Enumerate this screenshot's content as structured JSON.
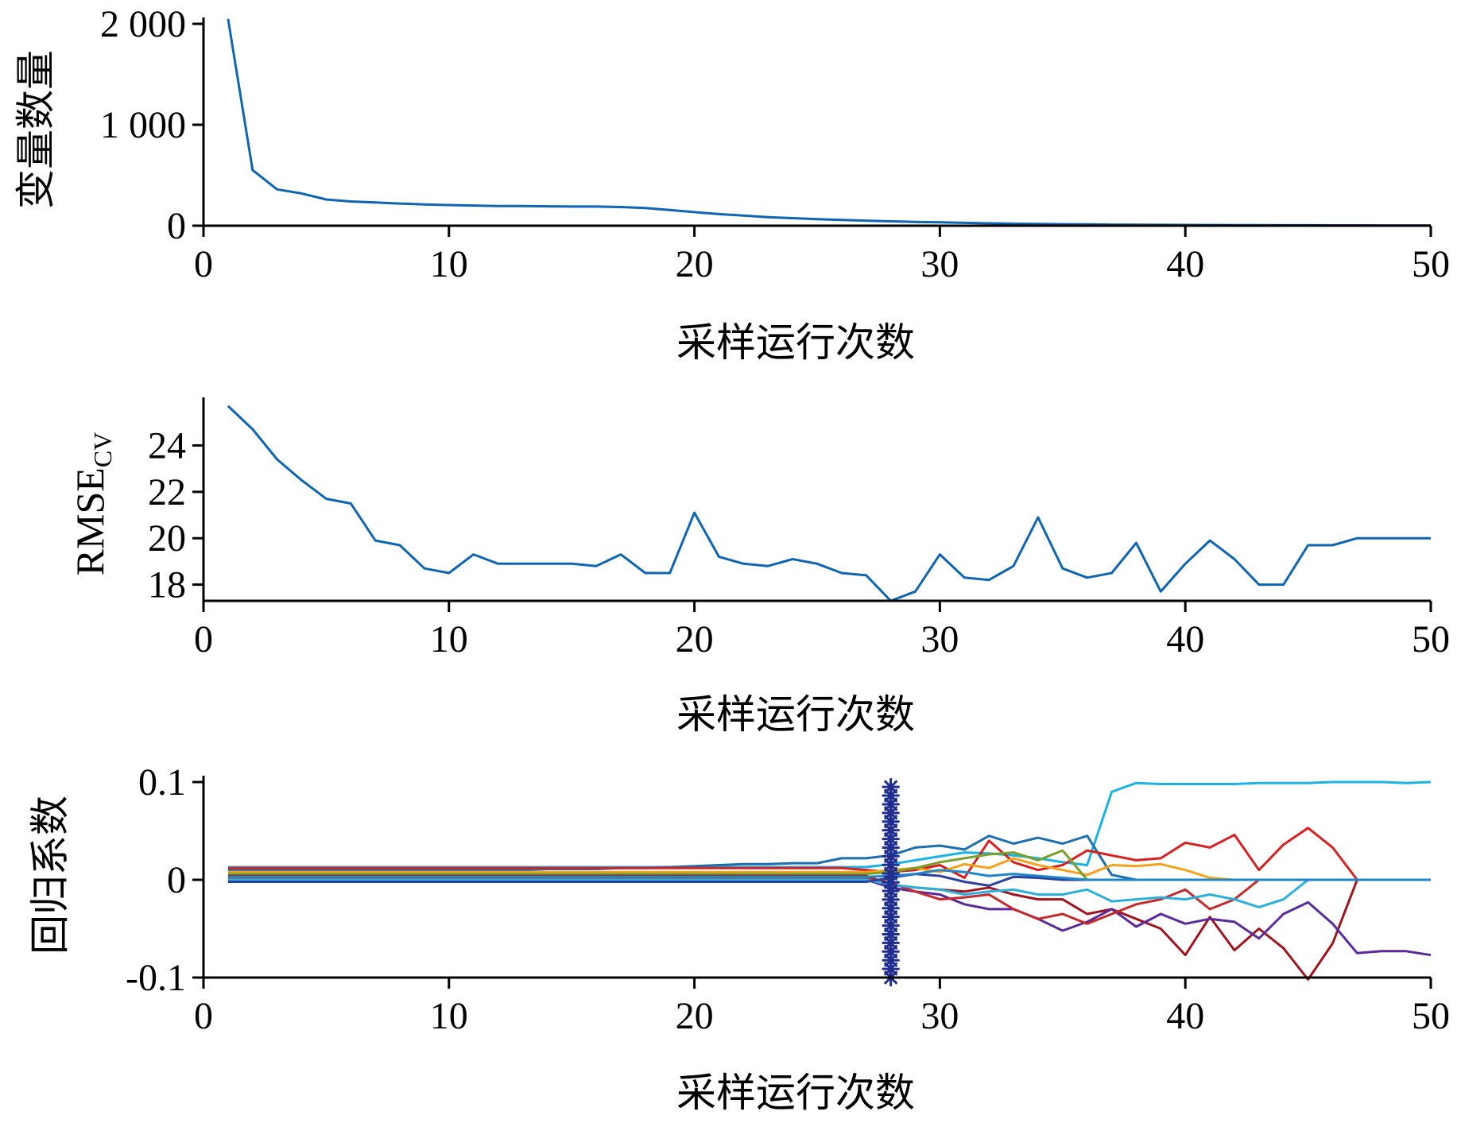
{
  "chart_data": [
    {
      "type": "line",
      "xlabel": "采样运行次数",
      "ylabel": "变量数量",
      "xlim": [
        0,
        50
      ],
      "ylim": [
        0,
        2000
      ],
      "xticks": [
        0,
        10,
        20,
        30,
        40,
        50
      ],
      "xtick_labels": [
        "0",
        "10",
        "20",
        "30",
        "40",
        "50"
      ],
      "yticks": [
        0,
        1000,
        2000
      ],
      "ytick_labels": [
        "0",
        "1 000",
        "2 000"
      ],
      "series": [
        {
          "color": "#0d65b4",
          "x": [
            1,
            2,
            3,
            4,
            5,
            6,
            7,
            8,
            9,
            10,
            11,
            12,
            13,
            14,
            15,
            16,
            17,
            18,
            19,
            20,
            21,
            22,
            23,
            24,
            25,
            26,
            27,
            28,
            29,
            30,
            31,
            32,
            33,
            34,
            35,
            36,
            37,
            38,
            39,
            40,
            41,
            42,
            43,
            44,
            45,
            46,
            47,
            48,
            49,
            50
          ],
          "y": [
            2050,
            550,
            360,
            320,
            260,
            240,
            230,
            220,
            210,
            205,
            200,
            195,
            195,
            192,
            190,
            190,
            185,
            175,
            155,
            135,
            115,
            100,
            85,
            75,
            65,
            57,
            50,
            43,
            38,
            33,
            28,
            24,
            20,
            17,
            15,
            13,
            11,
            10,
            9,
            8,
            7,
            6,
            6,
            5,
            5,
            4,
            4,
            3,
            3,
            3
          ]
        }
      ]
    },
    {
      "type": "line",
      "xlabel": "采样运行次数",
      "ylabel": "RMSE",
      "ylabel_sub": "CV",
      "xlim": [
        0,
        50
      ],
      "ylim": [
        17.3,
        25.8
      ],
      "xticks": [
        0,
        10,
        20,
        30,
        40,
        50
      ],
      "xtick_labels": [
        "0",
        "10",
        "20",
        "30",
        "40",
        "50"
      ],
      "yticks": [
        18,
        20,
        22,
        24
      ],
      "ytick_labels": [
        "18",
        "20",
        "22",
        "24"
      ],
      "series": [
        {
          "color": "#0d65b4",
          "x": [
            1,
            2,
            3,
            4,
            5,
            6,
            7,
            8,
            9,
            10,
            11,
            12,
            13,
            14,
            15,
            16,
            17,
            18,
            19,
            20,
            21,
            22,
            23,
            24,
            25,
            26,
            27,
            28,
            29,
            30,
            31,
            32,
            33,
            34,
            35,
            36,
            37,
            38,
            39,
            40,
            41,
            42,
            43,
            44,
            45,
            46,
            47,
            48,
            49,
            50
          ],
          "y": [
            25.7,
            24.7,
            23.4,
            22.5,
            21.7,
            21.5,
            19.9,
            19.7,
            18.7,
            18.5,
            19.3,
            18.9,
            18.9,
            18.9,
            18.9,
            18.8,
            19.3,
            18.5,
            18.5,
            21.1,
            19.2,
            18.9,
            18.8,
            19.1,
            18.9,
            18.5,
            18.4,
            17.3,
            17.7,
            19.3,
            18.3,
            18.2,
            18.8,
            20.9,
            18.7,
            18.3,
            18.5,
            19.8,
            17.7,
            18.9,
            19.9,
            19.1,
            18.0,
            18.0,
            19.7,
            19.7,
            20.0,
            20.0,
            20.0,
            20.0
          ]
        }
      ]
    },
    {
      "type": "line",
      "xlabel": "采样运行次数",
      "ylabel": "回归系数",
      "xlim": [
        0,
        50
      ],
      "ylim": [
        -0.1,
        0.1
      ],
      "xticks": [
        0,
        10,
        20,
        30,
        40,
        50
      ],
      "xtick_labels": [
        "0",
        "10",
        "20",
        "30",
        "40",
        "50"
      ],
      "yticks": [
        -0.1,
        0,
        0.1
      ],
      "ytick_labels": [
        "-0.1",
        "0",
        "0.1"
      ],
      "marker": {
        "x": 28,
        "y_range": [
          -0.1,
          0.095
        ],
        "symbol": "*",
        "color": "#1f2e8f"
      },
      "series": [
        {
          "color": "#19b3e6",
          "y": [
            0.013,
            0.013,
            0.013,
            0.013,
            0.013,
            0.013,
            0.013,
            0.013,
            0.013,
            0.013,
            0.013,
            0.013,
            0.013,
            0.013,
            0.013,
            0.013,
            0.013,
            0.013,
            0.013,
            0.013,
            0.013,
            0.013,
            0.013,
            0.013,
            0.013,
            0.013,
            0.013,
            0.016,
            0.02,
            0.024,
            0.028,
            0.027,
            0.025,
            0.022,
            0.018,
            0.015,
            0.09,
            0.099,
            0.098,
            0.098,
            0.098,
            0.098,
            0.099,
            0.099,
            0.099,
            0.1,
            0.1,
            0.1,
            0.099,
            0.1
          ]
        },
        {
          "color": "#1a6fb0",
          "y": [
            0.01,
            0.01,
            0.01,
            0.01,
            0.01,
            0.01,
            0.01,
            0.01,
            0.01,
            0.01,
            0.01,
            0.01,
            0.01,
            0.011,
            0.011,
            0.011,
            0.012,
            0.012,
            0.013,
            0.014,
            0.015,
            0.016,
            0.016,
            0.017,
            0.017,
            0.022,
            0.022,
            0.025,
            0.033,
            0.035,
            0.031,
            0.045,
            0.037,
            0.043,
            0.037,
            0.045,
            0.005,
            0,
            0,
            0,
            0,
            0,
            0,
            0,
            0,
            0,
            0,
            0,
            0,
            0
          ]
        },
        {
          "color": "#d92020",
          "y": [
            0.012,
            0.012,
            0.012,
            0.012,
            0.012,
            0.012,
            0.012,
            0.012,
            0.012,
            0.012,
            0.012,
            0.012,
            0.012,
            0.012,
            0.012,
            0.012,
            0.012,
            0.012,
            0.012,
            0.012,
            0.012,
            0.012,
            0.012,
            0.012,
            0.012,
            0.012,
            0.01,
            0.008,
            0.01,
            0.015,
            0.002,
            0.04,
            0.018,
            0.01,
            0.015,
            0.03,
            0.025,
            0.02,
            0.022,
            0.038,
            0.033,
            0.046,
            0.01,
            0.036,
            0.053,
            0.033,
            0,
            0,
            0,
            0
          ]
        },
        {
          "color": "#f5a21a",
          "y": [
            0.008,
            0.008,
            0.008,
            0.008,
            0.008,
            0.008,
            0.008,
            0.008,
            0.008,
            0.008,
            0.008,
            0.008,
            0.008,
            0.008,
            0.008,
            0.008,
            0.008,
            0.008,
            0.008,
            0.008,
            0.008,
            0.008,
            0.008,
            0.008,
            0.008,
            0.008,
            0.008,
            0.01,
            0.012,
            0.008,
            0.016,
            0.012,
            0.022,
            0.015,
            0.01,
            0.005,
            0.015,
            0.014,
            0.016,
            0.01,
            0.002,
            0,
            0,
            0,
            0,
            0,
            0,
            0,
            0,
            0
          ]
        },
        {
          "color": "#7aa02c",
          "y": [
            0.006,
            0.006,
            0.006,
            0.006,
            0.006,
            0.006,
            0.006,
            0.006,
            0.006,
            0.006,
            0.006,
            0.006,
            0.006,
            0.006,
            0.006,
            0.006,
            0.006,
            0.006,
            0.006,
            0.006,
            0.006,
            0.006,
            0.006,
            0.006,
            0.006,
            0.006,
            0.006,
            0.008,
            0.012,
            0.018,
            0.022,
            0.026,
            0.028,
            0.02,
            0.03,
            0,
            0,
            0,
            0,
            0,
            0,
            0,
            0,
            0,
            0,
            0,
            0,
            0,
            0,
            0
          ]
        },
        {
          "color": "#a0141e",
          "y": [
            0.004,
            0.004,
            0.004,
            0.004,
            0.004,
            0.004,
            0.004,
            0.004,
            0.004,
            0.004,
            0.004,
            0.004,
            0.004,
            0.004,
            0.004,
            0.004,
            0.004,
            0.004,
            0.004,
            0.004,
            0.004,
            0.004,
            0.004,
            0.004,
            0.004,
            0.004,
            0.004,
            -0.005,
            -0.008,
            -0.01,
            -0.012,
            -0.008,
            -0.015,
            -0.02,
            -0.02,
            -0.035,
            -0.03,
            -0.04,
            -0.05,
            -0.077,
            -0.038,
            -0.072,
            -0.05,
            -0.07,
            -0.102,
            -0.065,
            0,
            0,
            0,
            0
          ]
        },
        {
          "color": "#5a2a9c",
          "y": [
            0,
            0,
            0,
            0,
            0,
            0,
            0,
            0,
            0,
            0,
            0,
            0,
            0,
            0,
            0,
            0,
            0,
            0,
            0,
            0,
            0,
            0,
            0,
            0,
            0,
            0,
            0,
            -0.008,
            -0.012,
            -0.015,
            -0.025,
            -0.03,
            -0.03,
            -0.04,
            -0.052,
            -0.043,
            -0.03,
            -0.048,
            -0.035,
            -0.045,
            -0.04,
            -0.043,
            -0.06,
            -0.035,
            -0.023,
            -0.045,
            -0.075,
            -0.073,
            -0.073,
            -0.077
          ]
        },
        {
          "color": "#c42a2a",
          "y": [
            0.002,
            0.002,
            0.002,
            0.002,
            0.002,
            0.002,
            0.002,
            0.002,
            0.002,
            0.002,
            0.002,
            0.002,
            0.002,
            0.002,
            0.002,
            0.002,
            0.002,
            0.002,
            0.002,
            0.002,
            0.002,
            0.002,
            0.002,
            0.002,
            0.002,
            0.002,
            0.002,
            -0.003,
            -0.012,
            -0.02,
            -0.018,
            -0.015,
            -0.03,
            -0.04,
            -0.035,
            -0.045,
            -0.035,
            -0.025,
            -0.02,
            -0.01,
            -0.03,
            -0.02,
            0,
            0,
            0,
            0,
            0,
            0,
            0,
            0
          ]
        },
        {
          "color": "#2ab0dd",
          "y": [
            0,
            0,
            0,
            0,
            0,
            0,
            0,
            0,
            0,
            0,
            0,
            0,
            0,
            0,
            0,
            0,
            0,
            0,
            0,
            0,
            0,
            0,
            0,
            0,
            0,
            0,
            0,
            -0.005,
            -0.008,
            -0.01,
            -0.015,
            -0.012,
            -0.01,
            -0.015,
            -0.015,
            -0.01,
            -0.022,
            -0.02,
            -0.018,
            -0.02,
            -0.015,
            -0.02,
            -0.028,
            -0.02,
            0,
            0,
            0,
            0,
            0,
            0
          ]
        },
        {
          "color": "#2a3f9f",
          "y": [
            -0.002,
            -0.002,
            -0.002,
            -0.002,
            -0.002,
            -0.002,
            -0.002,
            -0.002,
            -0.002,
            -0.002,
            -0.002,
            -0.002,
            -0.002,
            -0.002,
            -0.002,
            -0.002,
            -0.002,
            -0.002,
            -0.002,
            -0.002,
            -0.002,
            -0.002,
            -0.002,
            -0.002,
            -0.002,
            -0.002,
            -0.002,
            0.002,
            0.006,
            0.004,
            -0.002,
            -0.006,
            0.003,
            0.002,
            0,
            0,
            0,
            0,
            0,
            0,
            0,
            0,
            0,
            0,
            0,
            0,
            0,
            0,
            0,
            0
          ]
        },
        {
          "color": "#1e87c8",
          "y": [
            0.003,
            0.003,
            0.003,
            0.003,
            0.003,
            0.003,
            0.003,
            0.003,
            0.003,
            0.003,
            0.003,
            0.003,
            0.003,
            0.003,
            0.003,
            0.003,
            0.003,
            0.003,
            0.003,
            0.003,
            0.003,
            0.003,
            0.003,
            0.003,
            0.003,
            0.003,
            0.003,
            0.004,
            0.006,
            0.01,
            0.008,
            0.004,
            0.006,
            0.004,
            0.002,
            0,
            0,
            0,
            0,
            0,
            0,
            0,
            0,
            0,
            0,
            0,
            0,
            0,
            0,
            0
          ]
        }
      ]
    }
  ]
}
